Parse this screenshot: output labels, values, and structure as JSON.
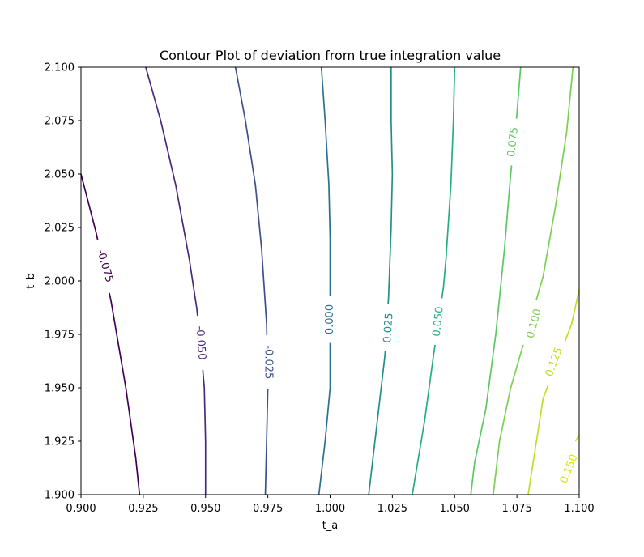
{
  "chart_data": {
    "type": "contour",
    "title": "Contour Plot of deviation from true integration value",
    "xlabel": "t_a",
    "ylabel": "t_b",
    "xlim": [
      0.9,
      1.1
    ],
    "ylim": [
      1.9,
      2.1
    ],
    "xticks": [
      "0.900",
      "0.925",
      "0.950",
      "0.975",
      "1.000",
      "1.025",
      "1.050",
      "1.075",
      "1.100"
    ],
    "yticks": [
      "1.900",
      "1.925",
      "1.950",
      "1.975",
      "2.000",
      "2.025",
      "2.050",
      "2.075",
      "2.100"
    ],
    "colormap": "viridis",
    "grid": false,
    "levels": [
      {
        "level": -0.075,
        "label": "-0.075",
        "color": "#440154",
        "points": [
          [
            0.9,
            2.05
          ],
          [
            0.906,
            2.023
          ],
          [
            0.912,
            1.991
          ],
          [
            0.918,
            1.95
          ],
          [
            0.922,
            1.917
          ],
          [
            0.9235,
            1.9
          ]
        ],
        "label_at": [
          0.9095,
          2.007
        ],
        "label_angle": 74
      },
      {
        "level": -0.05,
        "label": "-0.050",
        "color": "#472c7a",
        "points": [
          [
            0.926,
            2.1
          ],
          [
            0.932,
            2.075
          ],
          [
            0.938,
            2.045
          ],
          [
            0.9435,
            2.01
          ],
          [
            0.9465,
            1.987
          ],
          [
            0.948,
            1.97
          ],
          [
            0.9495,
            1.95
          ],
          [
            0.95,
            1.925
          ],
          [
            0.95,
            1.9
          ]
        ],
        "label_at": [
          0.948,
          1.971
        ],
        "label_angle": 86
      },
      {
        "level": -0.025,
        "label": "-0.025",
        "color": "#3b518b",
        "points": [
          [
            0.962,
            2.1
          ],
          [
            0.966,
            2.075
          ],
          [
            0.97,
            2.045
          ],
          [
            0.9725,
            2.015
          ],
          [
            0.9745,
            1.98
          ],
          [
            0.975,
            1.95
          ],
          [
            0.9745,
            1.925
          ],
          [
            0.974,
            1.9
          ]
        ],
        "label_at": [
          0.9752,
          1.962
        ],
        "label_angle": 90
      },
      {
        "level": 0.0,
        "label": "0.000",
        "color": "#2c718e",
        "points": [
          [
            0.9965,
            2.1
          ],
          [
            0.998,
            2.075
          ],
          [
            0.9995,
            2.045
          ],
          [
            1.0,
            2.02
          ],
          [
            1.0,
            1.997
          ],
          [
            1.0,
            1.95
          ],
          [
            0.998,
            1.925
          ],
          [
            0.9955,
            1.9
          ]
        ],
        "label_at": [
          1.0,
          1.982
        ],
        "label_angle": -90
      },
      {
        "level": 0.025,
        "label": "0.025",
        "color": "#21908d",
        "points": [
          [
            1.0245,
            2.1
          ],
          [
            1.0245,
            2.075
          ],
          [
            1.025,
            2.05
          ],
          [
            1.0245,
            2.025
          ],
          [
            1.0235,
            1.993
          ],
          [
            1.022,
            1.965
          ],
          [
            1.019,
            1.935
          ],
          [
            1.0155,
            1.9
          ]
        ],
        "label_at": [
          1.0235,
          1.978
        ],
        "label_angle": -86
      },
      {
        "level": 0.05,
        "label": "0.050",
        "color": "#27ad81",
        "points": [
          [
            1.05,
            2.1
          ],
          [
            1.0495,
            2.075
          ],
          [
            1.0485,
            2.045
          ],
          [
            1.0465,
            2.01
          ],
          [
            1.0455,
            1.997
          ],
          [
            1.0415,
            1.965
          ],
          [
            1.038,
            1.935
          ],
          [
            1.033,
            1.9
          ]
        ],
        "label_at": [
          1.0435,
          1.981
        ],
        "label_angle": -84
      },
      {
        "level": 0.075,
        "label": "0.075",
        "color": "#5cc863",
        "points": [
          [
            1.0765,
            2.1
          ],
          [
            1.075,
            2.078
          ],
          [
            1.0725,
            2.05
          ],
          [
            1.07,
            2.015
          ],
          [
            1.0665,
            1.975
          ],
          [
            1.0625,
            1.94
          ],
          [
            1.058,
            1.915
          ],
          [
            1.0565,
            1.9
          ]
        ],
        "label_at": [
          1.0735,
          2.065
        ],
        "label_angle": -84
      },
      {
        "level": 0.1,
        "label": "0.100",
        "color": "#7ad151",
        "points": [
          [
            1.0975,
            2.1
          ],
          [
            1.095,
            2.07
          ],
          [
            1.0905,
            2.035
          ],
          [
            1.0855,
            2.002
          ],
          [
            1.0725,
            1.95
          ],
          [
            1.068,
            1.925
          ],
          [
            1.0655,
            1.9
          ]
        ],
        "label_at": [
          1.082,
          1.98
        ],
        "label_angle": -75
      },
      {
        "level": 0.125,
        "label": "0.125",
        "color": "#bddf26",
        "points": [
          [
            1.1,
            1.996
          ],
          [
            1.097,
            1.98
          ],
          [
            1.0855,
            1.945
          ],
          [
            1.0795,
            1.9
          ]
        ],
        "label_at": [
          1.09,
          1.962
        ],
        "label_angle": -70
      },
      {
        "level": 0.15,
        "label": "0.150",
        "color": "#d8e219",
        "points": [
          [
            1.1,
            1.928
          ],
          [
            1.0985,
            1.925
          ]
        ],
        "label_at": [
          1.096,
          1.912
        ],
        "label_angle": -68
      }
    ]
  }
}
